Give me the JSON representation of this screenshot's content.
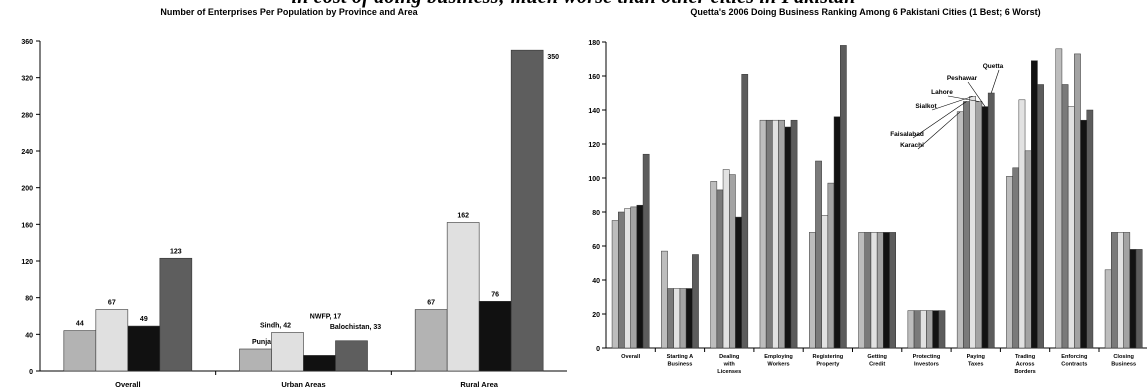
{
  "page": {
    "banner_text": "in cost of doing business; much worse than other cities in Pakistan"
  },
  "chart_data": [
    {
      "type": "bar",
      "title": "Number of Enterprises Per Population by Province and Area",
      "categories": [
        "Overall",
        "Urban Areas",
        "Rural Area"
      ],
      "ylim": [
        0,
        360
      ],
      "yticks": [
        0,
        40,
        80,
        120,
        160,
        200,
        240,
        280,
        320,
        360
      ],
      "grid": false,
      "legend": "none",
      "series": [
        {
          "key": "Punjab",
          "color": "#b3b3b3",
          "values": [
            44,
            24,
            67
          ]
        },
        {
          "key": "Sindh",
          "color": "#e0e0e0",
          "values": [
            67,
            42,
            162
          ]
        },
        {
          "key": "NWFP",
          "color": "#111111",
          "values": [
            49,
            17,
            76
          ]
        },
        {
          "key": "Balochistan",
          "color": "#5e5e5e",
          "values": [
            123,
            33,
            350
          ]
        }
      ],
      "data_labels": [
        [
          "44",
          "67",
          "49",
          "123"
        ],
        [
          "Punjab, 24",
          "Sindh, 42",
          "NWFP, 17",
          "Balochistan, 33"
        ],
        [
          "67",
          "162",
          "76",
          "350"
        ]
      ]
    },
    {
      "type": "bar",
      "title": "Quetta's 2006 Doing Business Ranking Among 6 Pakistani Cities (1 Best; 6 Worst)",
      "categories": [
        "Overall",
        "Starting A Business",
        "Dealing with Licenses",
        "Employing Workers",
        "Registering Property",
        "Getting Credit",
        "Protecting Investors",
        "Paying Taxes",
        "Trading Across Borders",
        "Enforcing Contracts",
        "Closing Business"
      ],
      "category_lines": [
        [
          "Overall"
        ],
        [
          "Starting A",
          "Business"
        ],
        [
          "Dealing",
          "with",
          "Licenses"
        ],
        [
          "Employing",
          "Workers"
        ],
        [
          "Registering",
          "Property"
        ],
        [
          "Getting",
          "Credit"
        ],
        [
          "Protecting",
          "Investors"
        ],
        [
          "Paying",
          "Taxes"
        ],
        [
          "Trading",
          "Across",
          "Borders"
        ],
        [
          "Enforcing",
          "Contracts"
        ],
        [
          "Closing",
          "Business"
        ]
      ],
      "ylim": [
        0,
        180
      ],
      "yticks": [
        0,
        20,
        40,
        60,
        80,
        100,
        120,
        140,
        160,
        180
      ],
      "grid": false,
      "legend": "annotated on Paying Taxes bars",
      "series": [
        {
          "name": "Karachi",
          "color": "#bdbdbd",
          "values": [
            75,
            57,
            98,
            134,
            68,
            68,
            22,
            139,
            101,
            176,
            46
          ]
        },
        {
          "name": "Faisalabad",
          "color": "#7a7a7a",
          "values": [
            80,
            35,
            93,
            134,
            110,
            68,
            22,
            145,
            106,
            155,
            68
          ]
        },
        {
          "name": "Sialkot",
          "color": "#e2e2e2",
          "values": [
            82,
            35,
            105,
            134,
            78,
            68,
            22,
            148,
            146,
            142,
            68
          ]
        },
        {
          "name": "Lahore",
          "color": "#a3a3a3",
          "values": [
            83,
            35,
            102,
            134,
            97,
            68,
            22,
            145,
            116,
            173,
            68
          ]
        },
        {
          "name": "Peshawar",
          "color": "#121212",
          "values": [
            84,
            35,
            77,
            130,
            136,
            68,
            22,
            142,
            169,
            134,
            58
          ]
        },
        {
          "name": "Quetta",
          "color": "#5c5c5c",
          "values": [
            114,
            55,
            161,
            134,
            178,
            68,
            22,
            150,
            155,
            140,
            58
          ]
        }
      ]
    }
  ]
}
